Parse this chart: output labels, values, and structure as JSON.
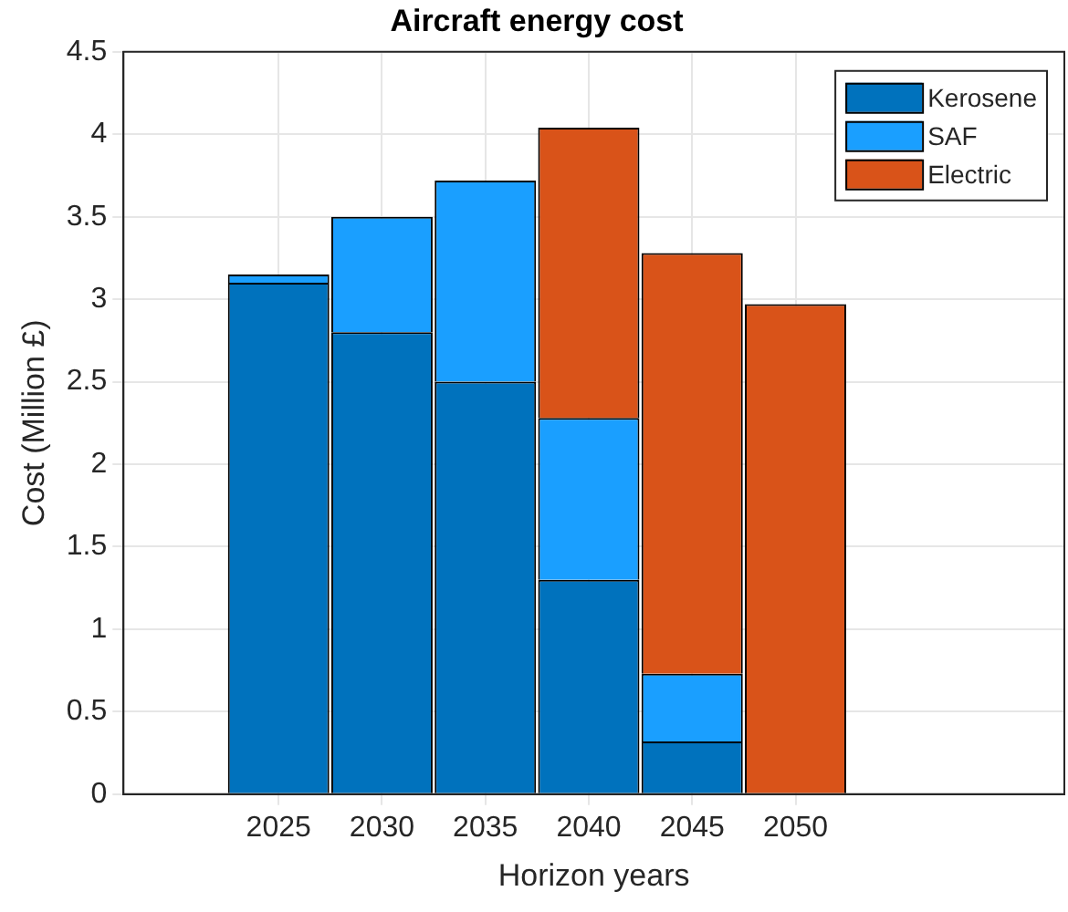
{
  "chart_data": {
    "type": "bar",
    "title": "Aircraft energy cost",
    "xlabel": "Horizon years",
    "ylabel": "Cost (Million £)",
    "stacked": true,
    "x": [
      2025,
      2030,
      2035,
      2040,
      2045,
      2050
    ],
    "series": [
      {
        "name": "Kerosene",
        "color": "#0072bd",
        "values": [
          3.1,
          2.8,
          2.5,
          1.3,
          0.32,
          0
        ]
      },
      {
        "name": "SAF",
        "color": "#1a9fff",
        "values": [
          0.05,
          0.7,
          1.22,
          0.98,
          0.41,
          0
        ]
      },
      {
        "name": "Electric",
        "color": "#d95319",
        "values": [
          0,
          0,
          0,
          1.76,
          2.55,
          2.97
        ]
      }
    ],
    "xlim": [
      2017.5,
      2063
    ],
    "xticks": [
      2025,
      2030,
      2035,
      2040,
      2045,
      2050
    ],
    "ylim": [
      0,
      4.5
    ],
    "yticks": [
      0,
      0.5,
      1,
      1.5,
      2,
      2.5,
      3,
      3.5,
      4,
      4.5
    ],
    "grid": true,
    "legend": "top right"
  }
}
